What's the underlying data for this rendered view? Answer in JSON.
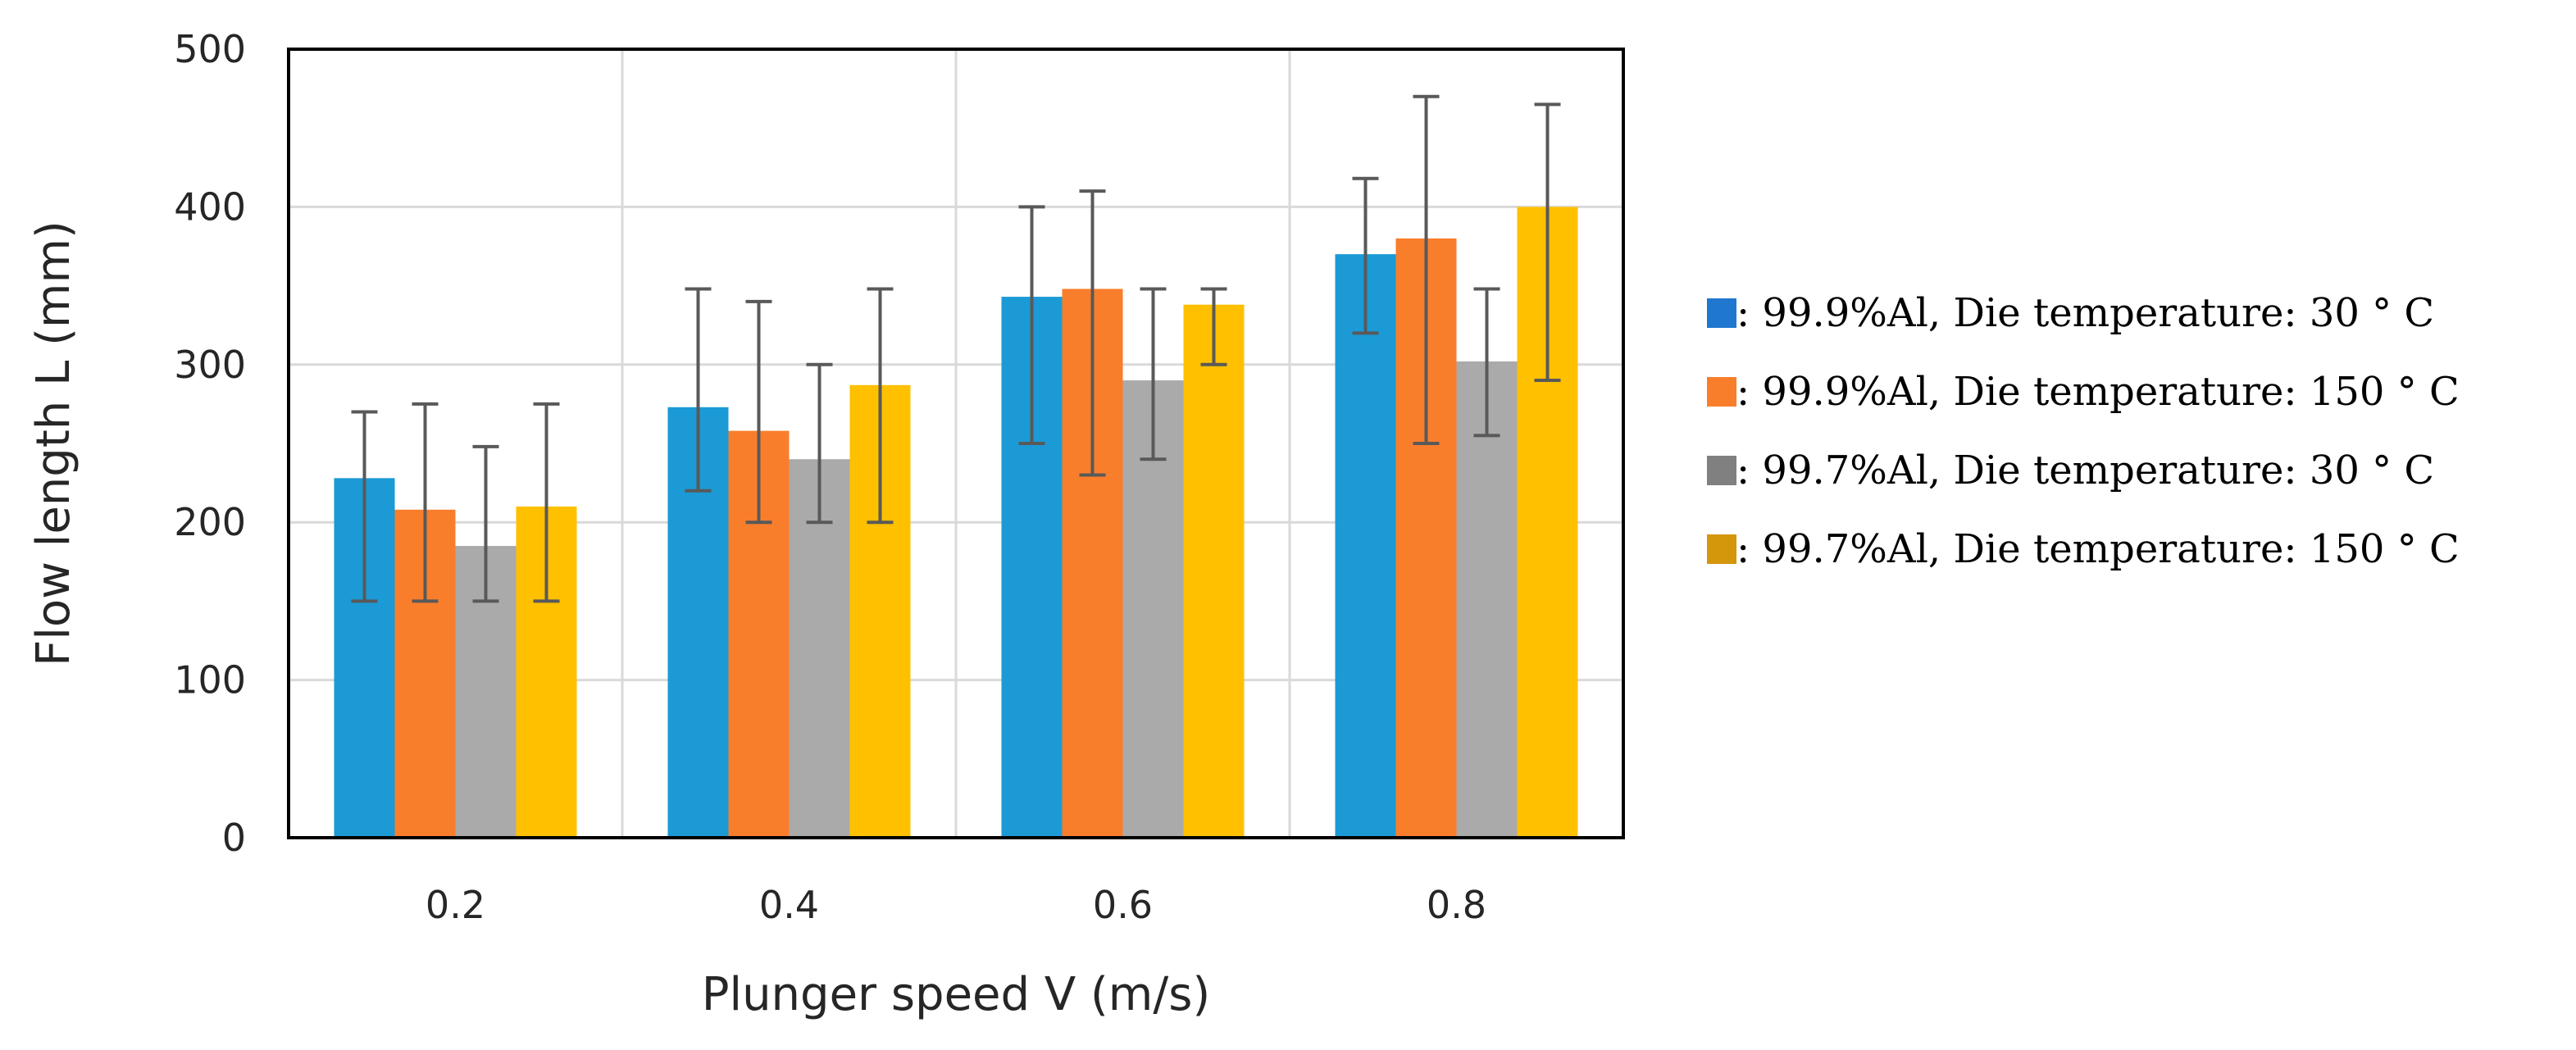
{
  "chart_data": {
    "type": "bar",
    "title": "",
    "xlabel": "Plunger speed V (m/s)",
    "ylabel": "Flow length L (mm)",
    "categories": [
      "0.2",
      "0.4",
      "0.6",
      "0.8"
    ],
    "ylim": [
      0,
      500
    ],
    "yticks": [
      "0",
      "100",
      "200",
      "300",
      "400",
      "500"
    ],
    "grid": true,
    "legend_position": "right",
    "series": [
      {
        "name": "99.9%Al, Die temperature: 30°C",
        "legend_label": ": 99.9%Al, Die temperature: 30 ° C",
        "color": "#1B9AD6",
        "legend_color": "#1F77D0",
        "values": [
          228,
          273,
          343,
          370
        ],
        "err_low": [
          150,
          220,
          250,
          320
        ],
        "err_high": [
          270,
          348,
          400,
          418
        ]
      },
      {
        "name": "99.9%Al, Die temperature: 150°C",
        "legend_label": ": 99.9%Al, Die temperature: 150 ° C",
        "color": "#F97E2C",
        "legend_color": "#F97E2C",
        "values": [
          208,
          258,
          348,
          380
        ],
        "err_low": [
          150,
          200,
          230,
          250
        ],
        "err_high": [
          275,
          340,
          410,
          470
        ]
      },
      {
        "name": "99.7%Al, Die temperature: 30°C",
        "legend_label": ": 99.7%Al, Die temperature: 30 ° C",
        "color": "#AAAAAA",
        "legend_color": "#808080",
        "values": [
          185,
          240,
          290,
          302
        ],
        "err_low": [
          150,
          200,
          240,
          255
        ],
        "err_high": [
          248,
          300,
          348,
          348
        ]
      },
      {
        "name": "99.7%Al, Die temperature: 150°C",
        "legend_label": ": 99.7%Al, Die temperature: 150 ° C",
        "color": "#FFC000",
        "legend_color": "#D4960A",
        "values": [
          210,
          287,
          338,
          400
        ],
        "err_low": [
          150,
          200,
          300,
          290
        ],
        "err_high": [
          275,
          348,
          348,
          465
        ]
      }
    ]
  }
}
